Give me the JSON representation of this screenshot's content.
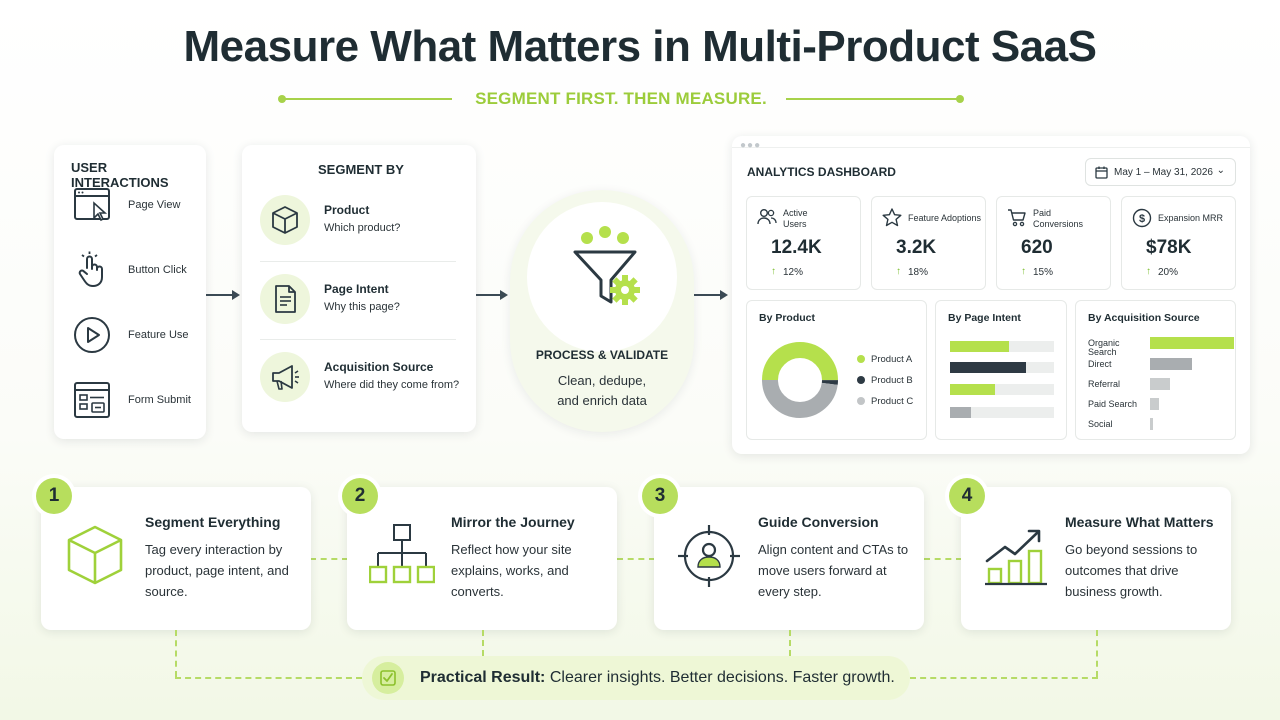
{
  "title": "Measure What Matters in Multi-Product SaaS",
  "subtitle": "SEGMENT FIRST.  THEN MEASURE.",
  "interactions": {
    "heading": "USER INTERACTIONS",
    "items": [
      {
        "label": "Page View",
        "icon": "browser-cursor-icon"
      },
      {
        "label": "Button Click",
        "icon": "hand-click-icon"
      },
      {
        "label": "Feature Use",
        "icon": "play-circle-icon"
      },
      {
        "label": "Form Submit",
        "icon": "form-window-icon"
      }
    ]
  },
  "segment": {
    "heading": "SEGMENT BY",
    "items": [
      {
        "title": "Product",
        "sub": "Which product?",
        "icon": "cube-icon"
      },
      {
        "title": "Page Intent",
        "sub": "Why this page?",
        "icon": "document-icon"
      },
      {
        "title": "Acquisition Source",
        "sub": "Where did they come from?",
        "icon": "megaphone-icon"
      }
    ]
  },
  "process": {
    "title": "PROCESS & VALIDATE",
    "line1": "Clean, dedupe,",
    "line2": "and enrich data",
    "icon": "funnel-gear-icon"
  },
  "dashboard": {
    "title": "ANALYTICS DASHBOARD",
    "date_range": "May 1 – May 31, 2026",
    "kpis": [
      {
        "label1": "Active",
        "label2": "Users",
        "value": "12.4K",
        "change": "12%",
        "icon": "users-icon"
      },
      {
        "label1": "Feature Adoptions",
        "label2": "",
        "value": "3.2K",
        "change": "18%",
        "icon": "star-icon"
      },
      {
        "label1": "Paid",
        "label2": "Conversions",
        "value": "620",
        "change": "15%",
        "icon": "cart-icon"
      },
      {
        "label1": "Expansion MRR",
        "label2": "",
        "value": "$78K",
        "change": "20%",
        "icon": "dollar-icon"
      }
    ],
    "colors": {
      "accent": "#b5e04c",
      "dark": "#2e3a44",
      "gray": "#a9adb0",
      "light_gray": "#c9cccd"
    }
  },
  "chart_data": [
    {
      "type": "pie",
      "title": "By Product",
      "categories": [
        "Product A",
        "Product B",
        "Product C"
      ],
      "values": [
        50,
        2,
        48
      ]
    },
    {
      "type": "bar",
      "title": "By Page Intent",
      "orientation": "horizontal",
      "values": [
        57,
        73,
        43,
        20
      ],
      "xlim": [
        0,
        100
      ]
    },
    {
      "type": "bar",
      "title": "By Acquisition Source",
      "orientation": "horizontal",
      "categories": [
        "Organic Search",
        "Direct",
        "Referral",
        "Paid Search",
        "Social"
      ],
      "values": [
        100,
        50,
        24,
        11,
        3
      ],
      "xlim": [
        0,
        100
      ]
    }
  ],
  "steps": [
    {
      "num": "1",
      "title": "Segment Everything",
      "body": "Tag every interaction by product, page intent, and source.",
      "icon": "cube-outline-icon"
    },
    {
      "num": "2",
      "title": "Mirror the Journey",
      "body": "Reflect how your site explains, works, and converts.",
      "icon": "hierarchy-icon"
    },
    {
      "num": "3",
      "title": "Guide Conversion",
      "body": "Align content and CTAs to move users forward at every step.",
      "icon": "target-user-icon"
    },
    {
      "num": "4",
      "title": "Measure What Matters",
      "body": "Go beyond sessions to outcomes that drive business growth.",
      "icon": "growth-chart-icon"
    }
  ],
  "result": {
    "label": "Practical Result:",
    "text": " Clearer insights. Better decisions. Faster growth.",
    "icon": "check-doc-icon"
  }
}
